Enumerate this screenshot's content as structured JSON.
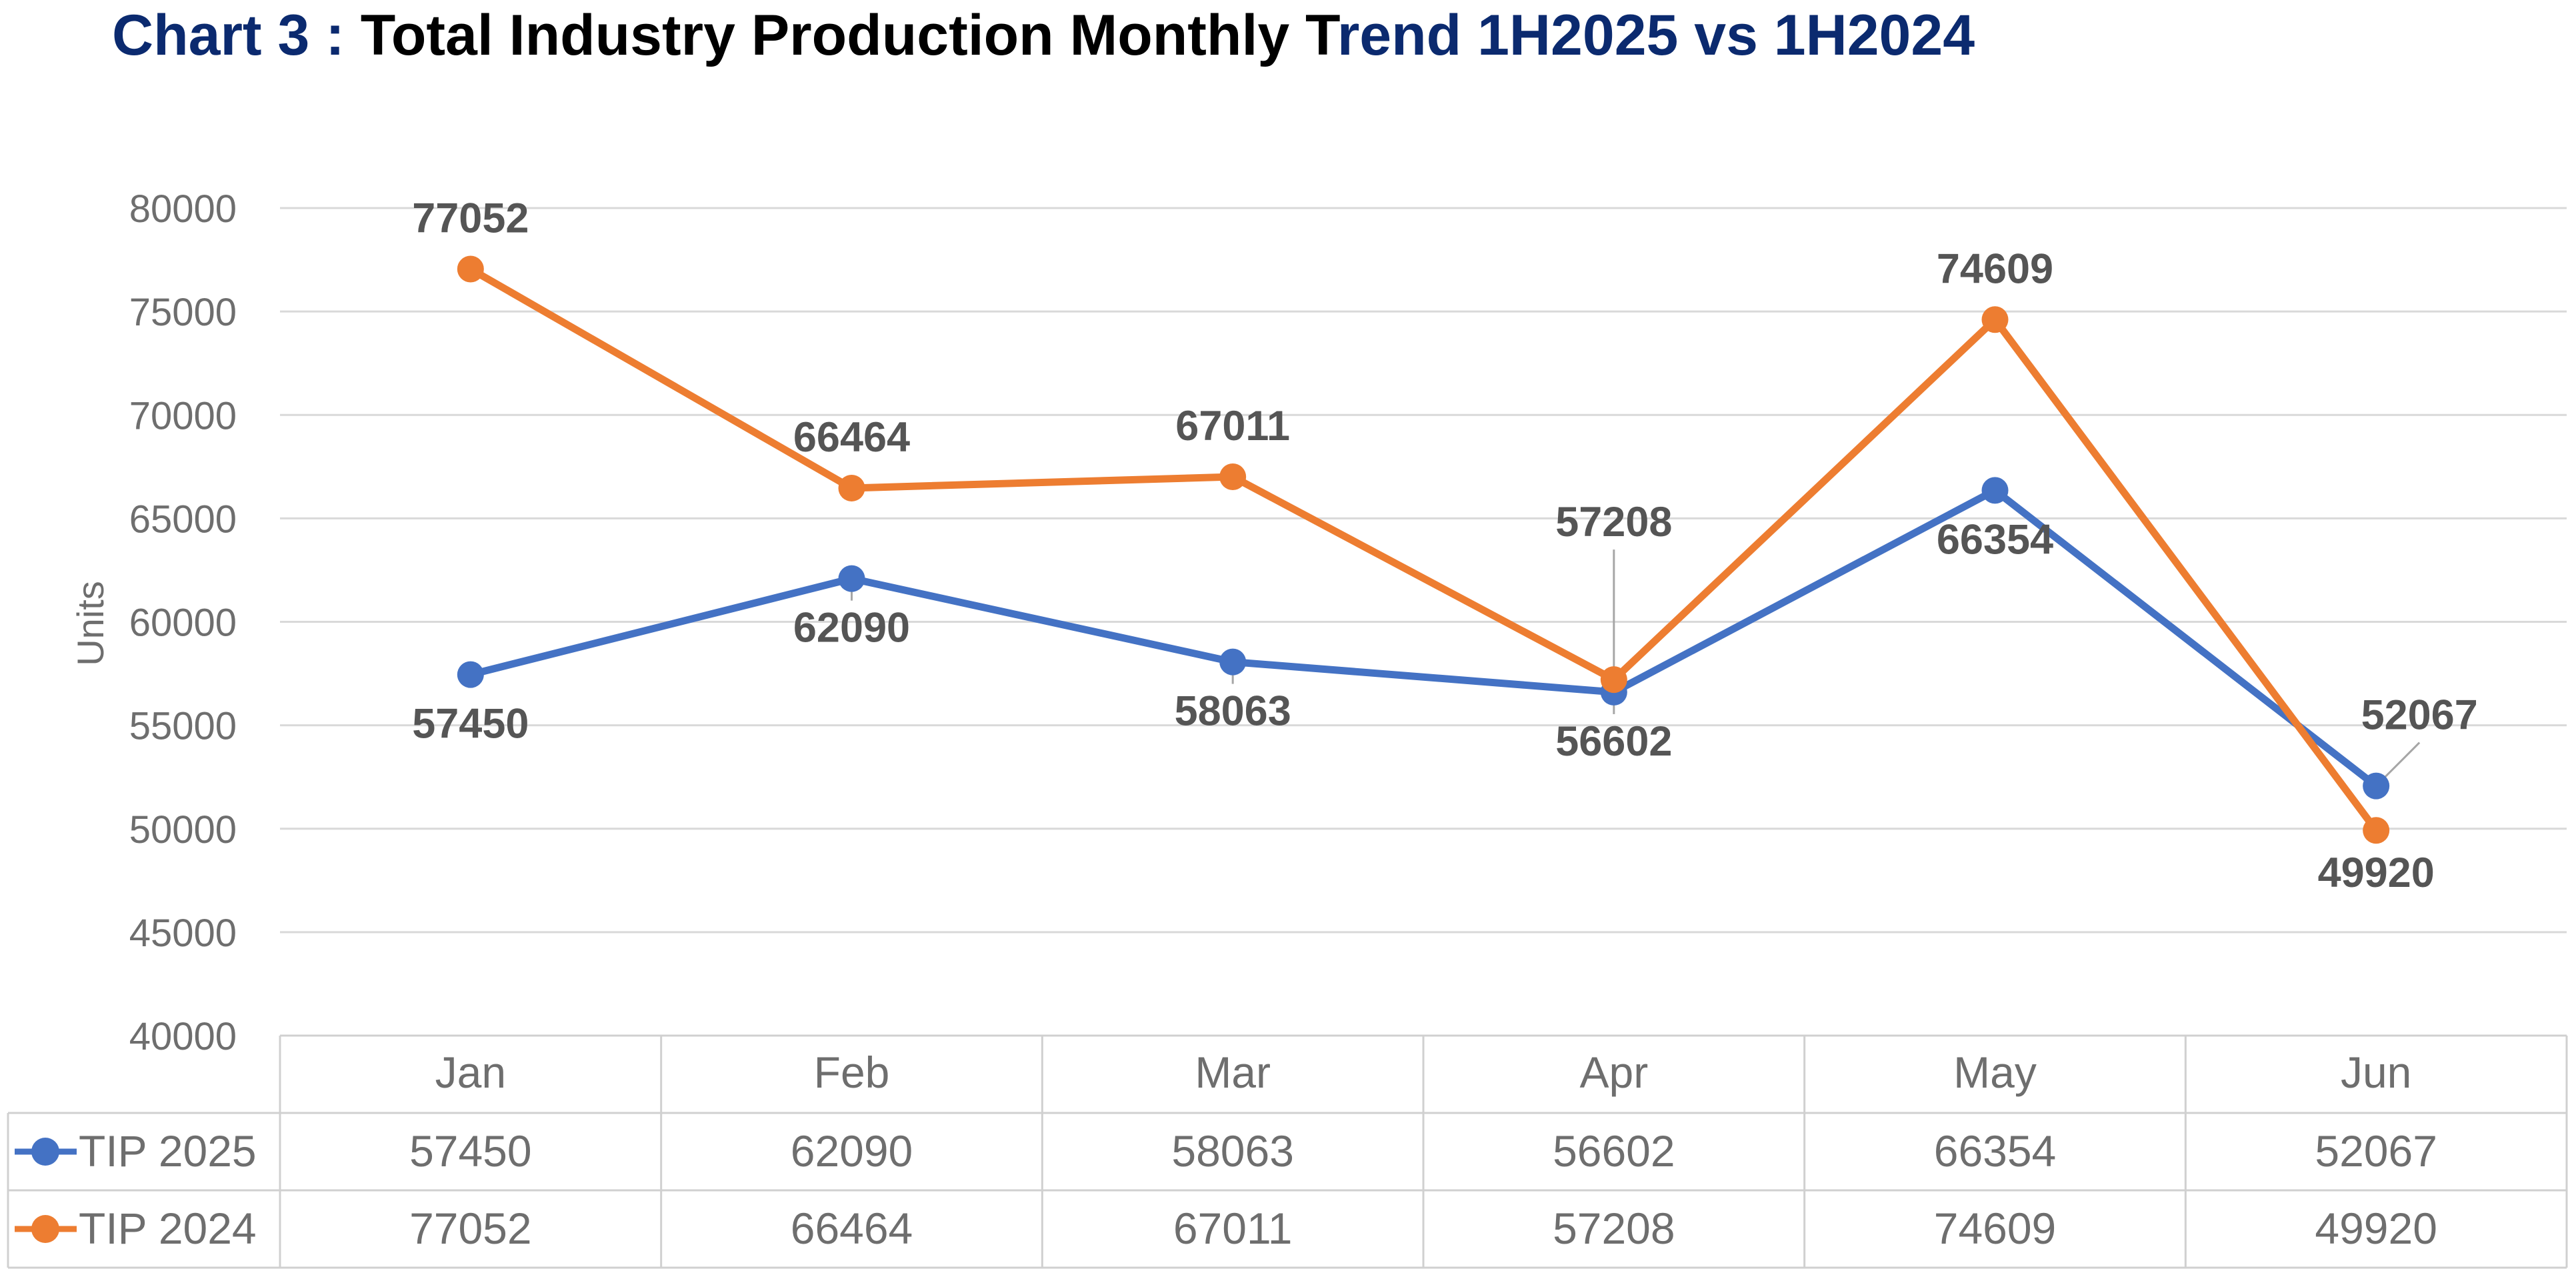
{
  "title": {
    "part1": "Chart 3 : ",
    "part2": "Total Industry Production Monthly T",
    "part3": "rend 1H2025 vs 1H2024",
    "color_dark": "#0b2a6f",
    "color_black": "#000000"
  },
  "chart_data": {
    "type": "line",
    "title": "Chart 3 : Total Industry Production Monthly Trend 1H2025 vs 1H2024",
    "categories": [
      "Jan",
      "Feb",
      "Mar",
      "Apr",
      "May",
      "Jun"
    ],
    "ylabel": "Units",
    "xlabel": "",
    "ylim": [
      40000,
      80000
    ],
    "yticks": [
      40000,
      45000,
      50000,
      55000,
      60000,
      65000,
      70000,
      75000,
      80000
    ],
    "grid": true,
    "legend": "data-table-left",
    "series": [
      {
        "name": "TIP 2025",
        "color": "#4472c4",
        "values": [
          57450,
          62090,
          58063,
          56602,
          66354,
          52067
        ]
      },
      {
        "name": "TIP 2024",
        "color": "#ed7d31",
        "values": [
          77052,
          66464,
          67011,
          57208,
          74609,
          49920
        ]
      }
    ]
  }
}
